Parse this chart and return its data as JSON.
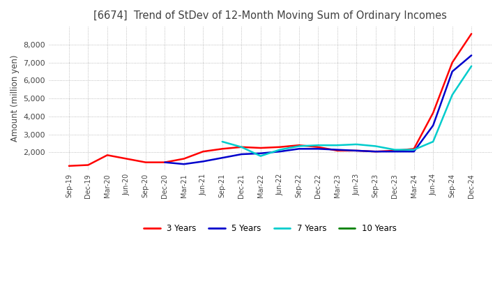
{
  "title": "[6674]  Trend of StDev of 12-Month Moving Sum of Ordinary Incomes",
  "ylabel": "Amount (million yen)",
  "ylim": [
    1000,
    9000
  ],
  "yticks": [
    2000,
    3000,
    4000,
    5000,
    6000,
    7000,
    8000
  ],
  "background_color": "#ffffff",
  "grid_color": "#aaaaaa",
  "title_color": "#404040",
  "legend": [
    "3 Years",
    "5 Years",
    "7 Years",
    "10 Years"
  ],
  "line_colors": [
    "#ff0000",
    "#0000cc",
    "#00cccc",
    "#008000"
  ],
  "x_labels": [
    "Sep-19",
    "Dec-19",
    "Mar-20",
    "Jun-20",
    "Sep-20",
    "Dec-20",
    "Mar-21",
    "Jun-21",
    "Sep-21",
    "Dec-21",
    "Mar-22",
    "Jun-22",
    "Sep-22",
    "Dec-22",
    "Mar-23",
    "Jun-23",
    "Sep-23",
    "Dec-23",
    "Mar-24",
    "Jun-24",
    "Sep-24",
    "Dec-24"
  ],
  "series_3y": [
    1250,
    1300,
    1850,
    1650,
    1450,
    1450,
    1650,
    2050,
    2200,
    2300,
    2250,
    2300,
    2400,
    2300,
    2100,
    2100,
    2050,
    2100,
    2200,
    4200,
    7000,
    8600
  ],
  "series_5y": [
    null,
    null,
    null,
    null,
    null,
    1450,
    1350,
    1500,
    1700,
    1900,
    1950,
    2050,
    2200,
    2200,
    2150,
    2100,
    2050,
    2050,
    2050,
    3500,
    6500,
    7400
  ],
  "series_7y": [
    null,
    null,
    null,
    null,
    null,
    null,
    null,
    null,
    2600,
    2300,
    1800,
    2150,
    2350,
    2400,
    2400,
    2450,
    2350,
    2150,
    2150,
    2600,
    5200,
    6800
  ],
  "series_10y": [
    null,
    null,
    null,
    null,
    null,
    null,
    null,
    null,
    null,
    null,
    null,
    null,
    null,
    null,
    null,
    null,
    null,
    null,
    null,
    null,
    null,
    null
  ]
}
